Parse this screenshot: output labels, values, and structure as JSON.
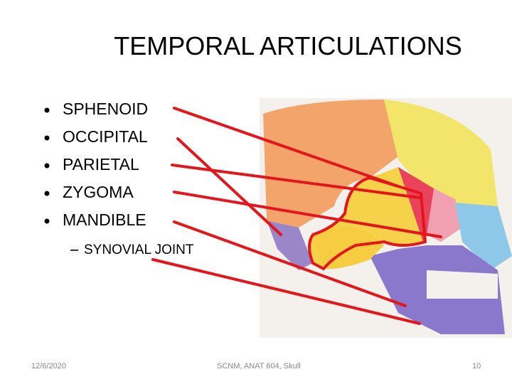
{
  "title": "TEMPORAL ARTICULATIONS",
  "bullets": [
    "SPHENOID",
    "OCCIPITAL",
    "PARIETAL",
    "ZYGOMA",
    "MANDIBLE"
  ],
  "sub_bullet": "SYNOVIAL JOINT",
  "footer": {
    "date": "12/6/2020",
    "center": "SCNM, ANAT 604, Skull",
    "page": "10"
  }
}
